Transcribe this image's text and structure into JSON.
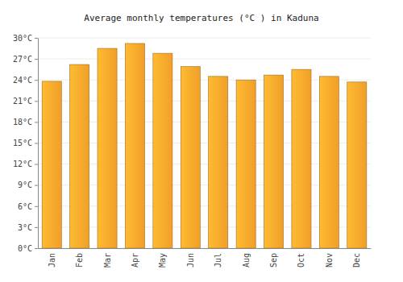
{
  "chart_data": {
    "type": "bar",
    "title": "Average monthly temperatures (°C ) in Kaduna",
    "categories": [
      "Jan",
      "Feb",
      "Mar",
      "Apr",
      "May",
      "Jun",
      "Jul",
      "Aug",
      "Sep",
      "Oct",
      "Nov",
      "Dec"
    ],
    "values": [
      23.8,
      26.2,
      28.5,
      29.2,
      27.8,
      25.9,
      24.5,
      24.0,
      24.7,
      25.5,
      24.5,
      23.7
    ],
    "color": "#f9a52b",
    "ylim": [
      0,
      30
    ],
    "yticks": [
      {
        "value": 0,
        "label": "0°C"
      },
      {
        "value": 3,
        "label": "3°C"
      },
      {
        "value": 6,
        "label": "6°C"
      },
      {
        "value": 9,
        "label": "9°C"
      },
      {
        "value": 12,
        "label": "12°C"
      },
      {
        "value": 15,
        "label": "15°C"
      },
      {
        "value": 18,
        "label": "18°C"
      },
      {
        "value": 21,
        "label": "21°C"
      },
      {
        "value": 24,
        "label": "24°C"
      },
      {
        "value": 27,
        "label": "27°C"
      },
      {
        "value": 30,
        "label": "30°C"
      }
    ],
    "grid": true
  }
}
